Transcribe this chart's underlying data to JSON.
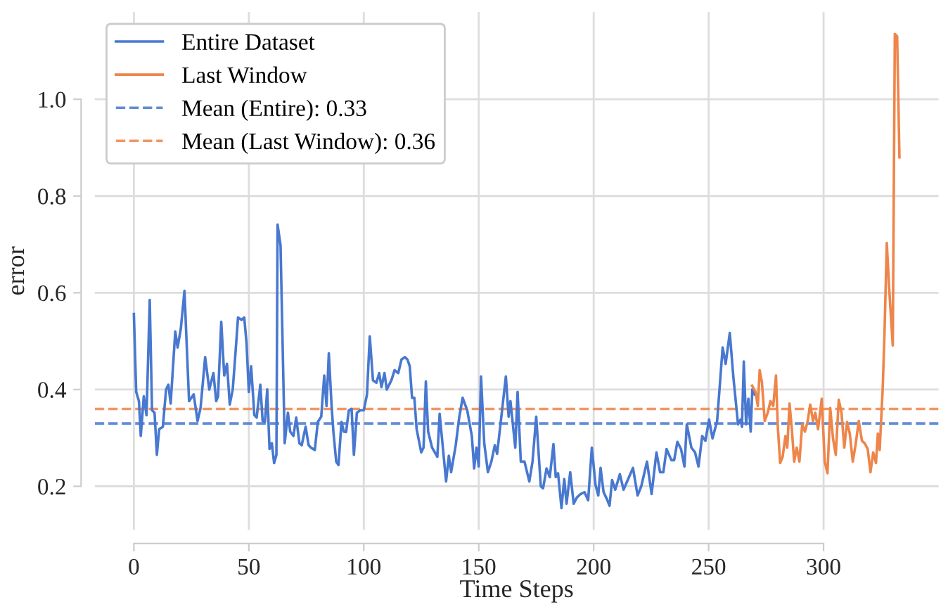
{
  "chart_data": {
    "type": "line",
    "xlabel": "Time Steps",
    "ylabel": "error",
    "xlim": [
      -17,
      350
    ],
    "ylim": [
      0.11,
      1.18
    ],
    "xticks": [
      0,
      50,
      100,
      150,
      200,
      250,
      300
    ],
    "yticks": [
      0.2,
      0.4,
      0.6,
      0.8,
      {
        "value": 1,
        "label": "1.0"
      }
    ],
    "grid": true,
    "legend": "top left",
    "line_style": "solid",
    "marker": "none",
    "series": [
      {
        "name": "Entire Dataset",
        "color": "#4878d0",
        "x": [
          0,
          1,
          2.2,
          3,
          4.3,
          5.5,
          6.9,
          7.9,
          9,
          10,
          11,
          12.6,
          14,
          15,
          16,
          18,
          19,
          20.4,
          22,
          24,
          26,
          27.7,
          29,
          31,
          32.8,
          34.6,
          35.8,
          36.6,
          38,
          39.3,
          40.5,
          41.7,
          43,
          44,
          45.3,
          46.8,
          48,
          49,
          50,
          51,
          52.4,
          53.4,
          55,
          56,
          57,
          58,
          59,
          60,
          61,
          62,
          62.5,
          63.8,
          65.6,
          67,
          68,
          69.4,
          70.6,
          72,
          73,
          74.7,
          76,
          77,
          78.7,
          80,
          81.5,
          82.8,
          83.8,
          84.8,
          86,
          86.8,
          88,
          89,
          90.3,
          91.3,
          92.3,
          93.5,
          94.7,
          95.7,
          97,
          98.4,
          100,
          101.4,
          102.6,
          104,
          105.5,
          106.7,
          107.7,
          109,
          110,
          112,
          113.4,
          115,
          116.4,
          117.9,
          119,
          120,
          121,
          122,
          123,
          125,
          126,
          127,
          128,
          129.7,
          132,
          133,
          135.8,
          137,
          138,
          140,
          141.5,
          143,
          145,
          147,
          148,
          149,
          150,
          151,
          152.4,
          154,
          155.5,
          157,
          158,
          159.8,
          161.8,
          163,
          163.8,
          165.9,
          166.9,
          168.3,
          169.9,
          172,
          173.4,
          175,
          177,
          178,
          179.5,
          180.9,
          182.5,
          183.5,
          184.5,
          186,
          187.2,
          188.2,
          189.8,
          191.3,
          192.7,
          194.3,
          196,
          197.6,
          199.2,
          200.8,
          202,
          203,
          204.3,
          205.7,
          206.9,
          208,
          209.4,
          211.4,
          213,
          215,
          217.1,
          219.1,
          220.7,
          223.2,
          225.2,
          227.3,
          228.9,
          230.3,
          231.7,
          233.8,
          235,
          236.4,
          238,
          239.5,
          240.5,
          242.5,
          244.1,
          245.6,
          247.2,
          248.6,
          250.2,
          251.7,
          253.7,
          256.1,
          257.4,
          259.2,
          260.8,
          262.8,
          263.9,
          264.5,
          265.3,
          266.3,
          267.3,
          268.3,
          269,
          270
        ],
        "values": [
          0.556,
          0.395,
          0.376,
          0.304,
          0.386,
          0.347,
          0.585,
          0.357,
          0.352,
          0.265,
          0.318,
          0.323,
          0.4,
          0.41,
          0.371,
          0.52,
          0.487,
          0.525,
          0.604,
          0.376,
          0.39,
          0.335,
          0.362,
          0.467,
          0.4,
          0.434,
          0.376,
          0.386,
          0.54,
          0.429,
          0.453,
          0.369,
          0.4,
          0.463,
          0.549,
          0.544,
          0.549,
          0.496,
          0.395,
          0.448,
          0.347,
          0.342,
          0.41,
          0.335,
          0.333,
          0.4,
          0.277,
          0.289,
          0.248,
          0.265,
          0.741,
          0.698,
          0.289,
          0.352,
          0.313,
          0.304,
          0.342,
          0.289,
          0.285,
          0.323,
          0.285,
          0.28,
          0.275,
          0.333,
          0.344,
          0.429,
          0.366,
          0.475,
          0.366,
          0.312,
          0.251,
          0.244,
          0.333,
          0.313,
          0.312,
          0.357,
          0.36,
          0.265,
          0.352,
          0.357,
          0.357,
          0.39,
          0.51,
          0.419,
          0.414,
          0.434,
          0.405,
          0.434,
          0.4,
          0.419,
          0.44,
          0.434,
          0.462,
          0.467,
          0.462,
          0.448,
          0.383,
          0.383,
          0.318,
          0.27,
          0.28,
          0.417,
          0.313,
          0.28,
          0.261,
          0.35,
          0.21,
          0.263,
          0.229,
          0.285,
          0.342,
          0.383,
          0.357,
          0.304,
          0.237,
          0.28,
          0.241,
          0.427,
          0.289,
          0.229,
          0.251,
          0.285,
          0.267,
          0.342,
          0.427,
          0.344,
          0.376,
          0.28,
          0.395,
          0.251,
          0.251,
          0.21,
          0.251,
          0.344,
          0.2,
          0.196,
          0.237,
          0.219,
          0.287,
          0.219,
          0.227,
          0.155,
          0.215,
          0.164,
          0.229,
          0.164,
          0.177,
          0.184,
          0.188,
          0.171,
          0.28,
          0.203,
          0.181,
          0.238,
          0.188,
          0.174,
          0.16,
          0.213,
          0.193,
          0.225,
          0.193,
          0.215,
          0.238,
          0.181,
          0.2,
          0.251,
          0.184,
          0.27,
          0.229,
          0.229,
          0.277,
          0.254,
          0.254,
          0.292,
          0.277,
          0.241,
          0.328,
          0.28,
          0.27,
          0.241,
          0.304,
          0.294,
          0.338,
          0.299,
          0.335,
          0.487,
          0.453,
          0.517,
          0.424,
          0.328,
          0.338,
          0.323,
          0.458,
          0.328,
          0.381,
          0.313,
          0.4,
          0.39
        ]
      },
      {
        "name": "Last Window",
        "color": "#ee854a",
        "x": [
          268.9,
          270.4,
          271.4,
          272.2,
          273.2,
          274.4,
          275.7,
          276.9,
          278.1,
          279.3,
          280.1,
          281.1,
          282.2,
          283.4,
          284.2,
          285.2,
          286.2,
          287.2,
          288.3,
          289.5,
          290.7,
          291.9,
          293.1,
          294.2,
          295.4,
          296.4,
          297.6,
          299.2,
          300.5,
          301.7,
          302.9,
          304.1,
          305.3,
          306.6,
          307.8,
          309,
          310.2,
          311.4,
          312.7,
          313.9,
          315.3,
          316.7,
          317.9,
          319.2,
          320.4,
          321.6,
          322.8,
          323.6,
          324.4,
          325.7,
          326.5,
          327.5,
          328.5,
          330.1,
          331,
          332,
          333
        ],
        "values": [
          0.408,
          0.395,
          0.366,
          0.44,
          0.414,
          0.335,
          0.352,
          0.376,
          0.366,
          0.429,
          0.323,
          0.248,
          0.261,
          0.304,
          0.28,
          0.371,
          0.318,
          0.251,
          0.28,
          0.251,
          0.328,
          0.313,
          0.335,
          0.369,
          0.335,
          0.352,
          0.318,
          0.381,
          0.251,
          0.227,
          0.362,
          0.299,
          0.265,
          0.379,
          0.352,
          0.28,
          0.333,
          0.309,
          0.251,
          0.285,
          0.335,
          0.294,
          0.289,
          0.277,
          0.229,
          0.27,
          0.248,
          0.309,
          0.275,
          0.4,
          0.515,
          0.703,
          0.612,
          0.491,
          1.135,
          1.13,
          0.88
        ]
      }
    ],
    "ref_lines": [
      {
        "axis": "y",
        "value": 0.33,
        "label": "Mean (Entire): 0.33",
        "color": "#4878d0",
        "line_style": "dashed"
      },
      {
        "axis": "y",
        "value": 0.36,
        "label": "Mean (Last Window): 0.36",
        "color": "#ee854a",
        "line_style": "dashed"
      }
    ]
  }
}
